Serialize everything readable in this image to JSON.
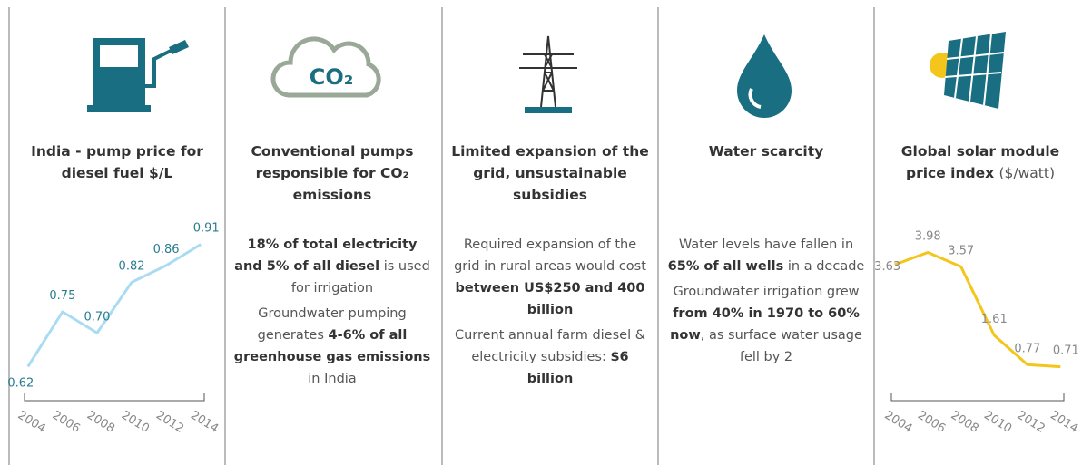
{
  "chart_data": [
    {
      "type": "line",
      "title": "India - pump price for diesel fuel $/L",
      "x": [
        2004,
        2006,
        2008,
        2010,
        2012,
        2014
      ],
      "series": [
        {
          "color": "#a9dcf2",
          "label_color": "#2a7d90",
          "values": [
            0.62,
            0.75,
            0.7,
            0.82,
            0.86,
            0.91
          ],
          "value_labels": [
            "0.62",
            "0.75",
            "0.70",
            "0.82",
            "0.86",
            "0.91"
          ]
        }
      ],
      "xlim": [
        2003.8,
        2014.2
      ],
      "xticks": [
        2004,
        2006,
        2008,
        2010,
        2012,
        2014
      ],
      "ylim": [
        0.55,
        0.95
      ]
    },
    {
      "type": "line",
      "title": "Global solar module price index",
      "subtitle": "($/watt)",
      "x": [
        2004,
        2006,
        2008,
        2010,
        2012,
        2014
      ],
      "series": [
        {
          "color": "#f4c51b",
          "label_color": "#888888",
          "values": [
            3.63,
            3.98,
            3.57,
            1.61,
            0.77,
            0.71
          ],
          "value_labels": [
            "3.63",
            "3.98",
            "3.57",
            "1.61",
            "0.77",
            "0.71"
          ]
        }
      ],
      "xlim": [
        2003.8,
        2014.2
      ],
      "xticks": [
        2004,
        2006,
        2008,
        2010,
        2012,
        2014
      ],
      "ylim": [
        0,
        4.2
      ]
    }
  ],
  "panels": [
    {
      "icon_text": "CO₂",
      "title": "Conventional pumps responsible for CO₂ emissions",
      "body": [
        [
          "18% of total electricity and 5% of all diesel",
          " is used for irrigation"
        ],
        [
          "Groundwater pumping generates ",
          "4-6% of all greenhouse gas emissions",
          " in India"
        ]
      ]
    },
    {
      "title": "Limited expansion of the grid, unsustainable subsidies",
      "body": [
        [
          "Required expansion of the grid in rural areas would cost ",
          "between US$250 and 400 billion"
        ],
        [
          "Current annual farm diesel & electricity subsidies: ",
          "$6 billion"
        ]
      ]
    },
    {
      "title": "Water scarcity",
      "body": [
        [
          "Water levels have fallen in ",
          "65% of all wells",
          " in a decade"
        ],
        [
          "Groundwater irrigation grew ",
          "from 40% in 1970 to 60% now",
          ", as surface water usage fell by 2"
        ]
      ]
    }
  ]
}
